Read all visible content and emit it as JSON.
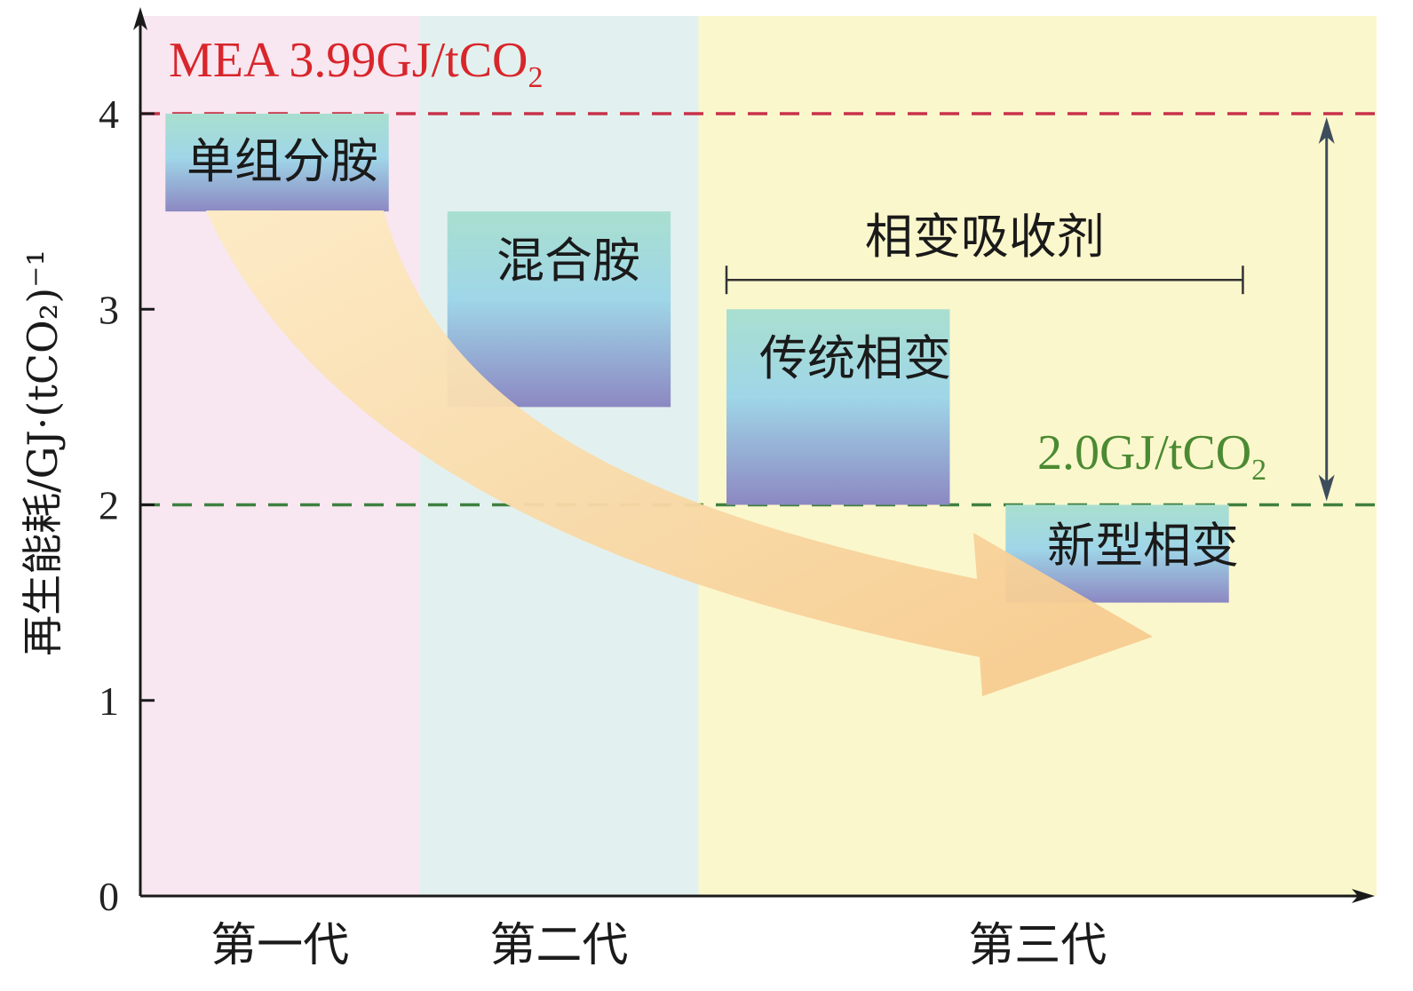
{
  "chart_data": {
    "type": "bar",
    "ylabel": "再生能耗/GJ·(tCO₂)⁻¹",
    "ylim": [
      0,
      4.5
    ],
    "yticks": [
      "0",
      "1",
      "2",
      "3",
      "4"
    ],
    "periods": [
      {
        "label": "第一代",
        "x_start": 0,
        "x_end": 1,
        "color": "#f8e6f0"
      },
      {
        "label": "第二代",
        "x_start": 1,
        "x_end": 2,
        "color": "#e2f1ef"
      },
      {
        "label": "第三代",
        "x_start": 2,
        "x_end": 4.5,
        "color": "#fbf7cc"
      }
    ],
    "bars": [
      {
        "label": "单组分胺",
        "x_start": 0.09,
        "x_end": 0.89,
        "y_low": 3.5,
        "y_high": 4.0
      },
      {
        "label": "混合胺",
        "x_start": 1.1,
        "x_end": 1.9,
        "y_low": 2.5,
        "y_high": 3.5
      },
      {
        "label": "传统相变",
        "x_start": 2.1,
        "x_end": 2.9,
        "y_low": 2.0,
        "y_high": 3.0
      },
      {
        "label": "新型相变",
        "x_start": 3.1,
        "x_end": 3.9,
        "y_low": 1.5,
        "y_high": 2.0
      }
    ],
    "reference_lines": [
      {
        "value": 4.0,
        "label_main": "MEA 3.99GJ/tCO",
        "label_sub": "2",
        "color": "#c8324a",
        "label_color": "#d8262b"
      },
      {
        "value": 2.0,
        "label_main": "2.0GJ/tCO",
        "label_sub": "2",
        "color": "#3f8040",
        "label_color": "#4b8a32"
      }
    ],
    "bracket": {
      "label": "相变吸收剂",
      "x_start": 2.1,
      "x_end": 3.95,
      "y": 3.15
    },
    "double_arrow": {
      "x": 4.25,
      "y_top": 4.0,
      "y_bottom": 2.0,
      "color": "#3d4d5c"
    },
    "trend_arrow": {
      "color_start": "#fde9bf",
      "color_end": "#f6c98a"
    }
  }
}
